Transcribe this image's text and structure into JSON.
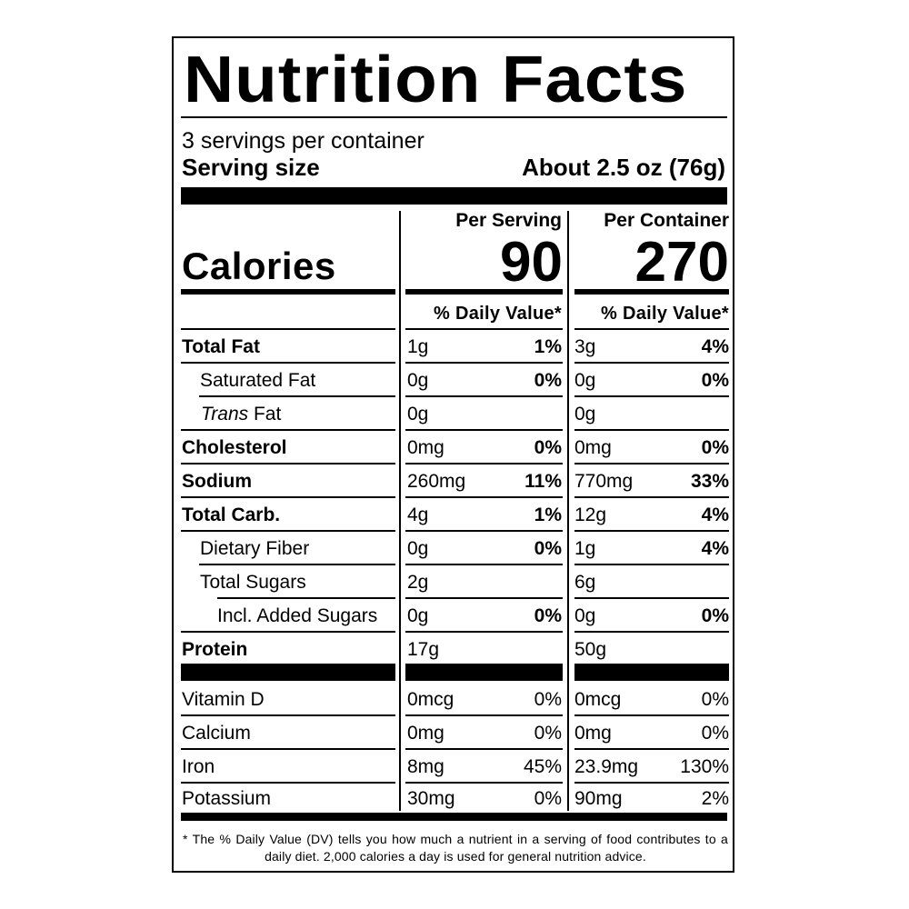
{
  "title": "Nutrition Facts",
  "servings_per_container": "3 servings per container",
  "serving_size_label": "Serving size",
  "serving_size_value": "About 2.5 oz (76g)",
  "calories_label": "Calories",
  "columns": [
    {
      "header": "Per Serving",
      "calories": "90",
      "dv_header": "% Daily Value*"
    },
    {
      "header": "Per Container",
      "calories": "270",
      "dv_header": "% Daily Value*"
    }
  ],
  "nutrients": [
    {
      "name": "Total Fat",
      "style": "bold",
      "indent": 0,
      "values": [
        {
          "amount": "1g",
          "dv": "1%"
        },
        {
          "amount": "3g",
          "dv": "4%"
        }
      ]
    },
    {
      "name": "Saturated Fat",
      "style": "normal",
      "indent": 1,
      "values": [
        {
          "amount": "0g",
          "dv": "0%"
        },
        {
          "amount": "0g",
          "dv": "0%"
        }
      ]
    },
    {
      "name_italic": "Trans",
      "name": " Fat",
      "style": "normal",
      "indent": 1,
      "values": [
        {
          "amount": "0g",
          "dv": ""
        },
        {
          "amount": "0g",
          "dv": ""
        }
      ]
    },
    {
      "name": "Cholesterol",
      "style": "bold",
      "indent": 0,
      "values": [
        {
          "amount": "0mg",
          "dv": "0%"
        },
        {
          "amount": "0mg",
          "dv": "0%"
        }
      ]
    },
    {
      "name": "Sodium",
      "style": "bold",
      "indent": 0,
      "values": [
        {
          "amount": "260mg",
          "dv": "11%"
        },
        {
          "amount": "770mg",
          "dv": "33%"
        }
      ]
    },
    {
      "name": "Total Carb.",
      "style": "bold",
      "indent": 0,
      "values": [
        {
          "amount": "4g",
          "dv": "1%"
        },
        {
          "amount": "12g",
          "dv": "4%"
        }
      ]
    },
    {
      "name": "Dietary Fiber",
      "style": "normal",
      "indent": 1,
      "values": [
        {
          "amount": "0g",
          "dv": "0%"
        },
        {
          "amount": "1g",
          "dv": "4%"
        }
      ]
    },
    {
      "name": "Total Sugars",
      "style": "normal",
      "indent": 1,
      "values": [
        {
          "amount": "2g",
          "dv": ""
        },
        {
          "amount": "6g",
          "dv": ""
        }
      ]
    },
    {
      "name": "Incl. Added Sugars",
      "style": "normal",
      "indent": 2,
      "values": [
        {
          "amount": "0g",
          "dv": "0%"
        },
        {
          "amount": "0g",
          "dv": "0%"
        }
      ]
    },
    {
      "name": "Protein",
      "style": "bold",
      "indent": 0,
      "values": [
        {
          "amount": "17g",
          "dv": ""
        },
        {
          "amount": "50g",
          "dv": ""
        }
      ]
    }
  ],
  "vitamins": [
    {
      "name": "Vitamin D",
      "values": [
        {
          "amount": "0mcg",
          "dv": "0%"
        },
        {
          "amount": "0mcg",
          "dv": "0%"
        }
      ]
    },
    {
      "name": "Calcium",
      "values": [
        {
          "amount": "0mg",
          "dv": "0%"
        },
        {
          "amount": "0mg",
          "dv": "0%"
        }
      ]
    },
    {
      "name": "Iron",
      "values": [
        {
          "amount": "8mg",
          "dv": "45%"
        },
        {
          "amount": "23.9mg",
          "dv": "130%"
        }
      ]
    },
    {
      "name": "Potassium",
      "values": [
        {
          "amount": "30mg",
          "dv": "0%"
        },
        {
          "amount": "90mg",
          "dv": "2%"
        }
      ]
    }
  ],
  "footnote": "* The % Daily Value (DV) tells you how much a nutrient in a serving of food contributes to a daily diet. 2,000 calories a day is used for general nutrition advice."
}
